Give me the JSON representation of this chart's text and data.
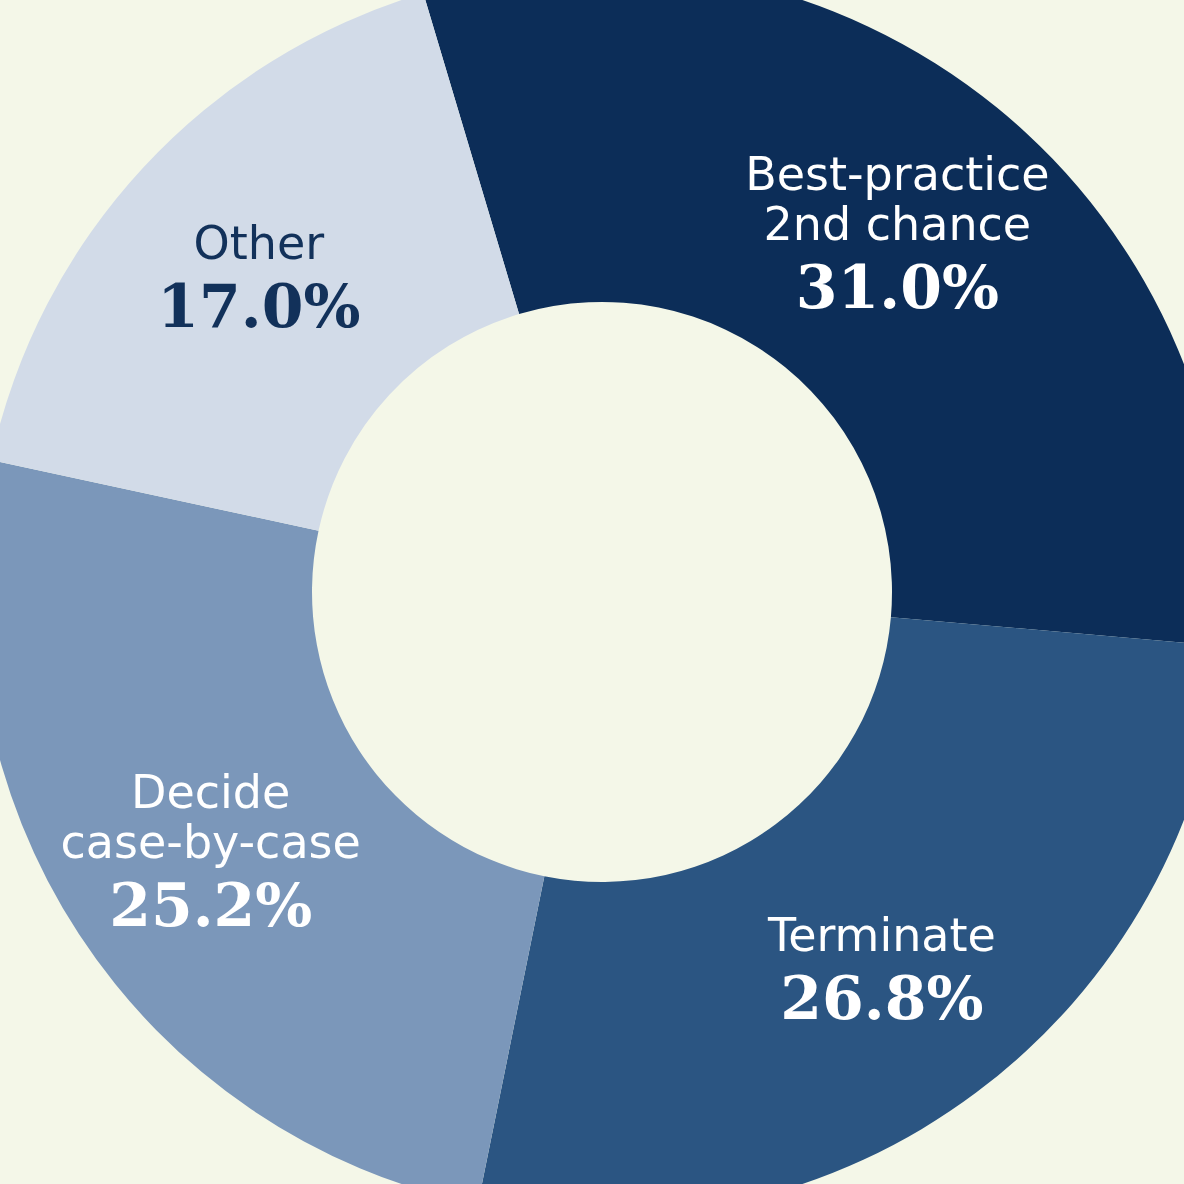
{
  "chart_data": {
    "type": "donut",
    "categories": [
      "Best-practice 2nd chance",
      "Terminate",
      "Decide case-by-case",
      "Other"
    ],
    "values": [
      31.0,
      26.8,
      25.2,
      17.0
    ],
    "colors": [
      "#0c2d58",
      "#2b5582",
      "#7b97ba",
      "#d2dbe8"
    ],
    "value_labels": [
      "31.0%",
      "26.8%",
      "25.2%",
      "17.0%"
    ]
  }
}
